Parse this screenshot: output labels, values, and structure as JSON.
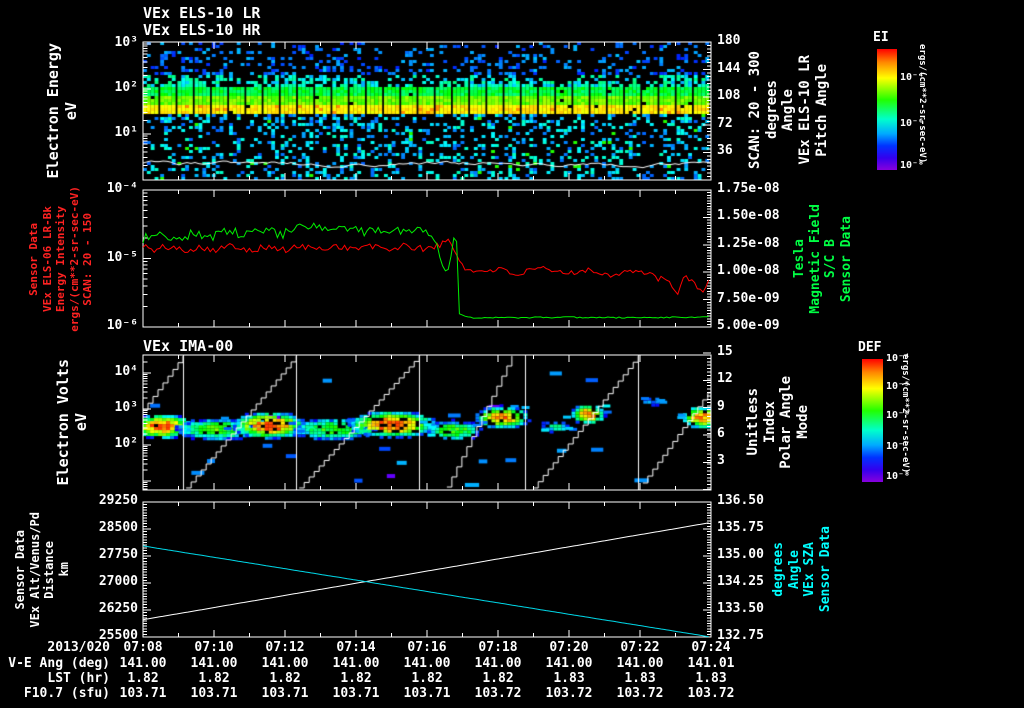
{
  "window": {
    "bg": "#000000",
    "fg": "#ffffff"
  },
  "time_axis": {
    "date_label": "2013/020",
    "ticks": [
      "07:08",
      "07:10",
      "07:12",
      "07:14",
      "07:16",
      "07:18",
      "07:20",
      "07:22",
      "07:24"
    ]
  },
  "footer_rows": [
    {
      "label": "V-E Ang (deg)",
      "values": [
        "141.00",
        "141.00",
        "141.00",
        "141.00",
        "141.00",
        "141.00",
        "141.00",
        "141.00",
        "141.01"
      ]
    },
    {
      "label": "LST (hr)",
      "values": [
        "1.82",
        "1.82",
        "1.82",
        "1.82",
        "1.82",
        "1.82",
        "1.83",
        "1.83",
        "1.83"
      ]
    },
    {
      "label": "F10.7 (sfu)",
      "values": [
        "103.71",
        "103.71",
        "103.71",
        "103.71",
        "103.71",
        "103.72",
        "103.72",
        "103.72",
        "103.72"
      ]
    }
  ],
  "chart_data": [
    {
      "type": "heatmap",
      "name": "els_electron_energy_spectrogram",
      "titles": [
        "VEx ELS-10 LR",
        "VEx ELS-10 HR"
      ],
      "ylabel_lines": [
        "Electron Energy",
        "eV"
      ],
      "yticks": [
        "10³",
        "10²",
        "10¹"
      ],
      "y_range_eV": [
        1,
        1100
      ],
      "x_range_time": [
        "07:08",
        "07:24"
      ],
      "band_eV": {
        "min": 28,
        "max": 110,
        "core": [
          30,
          60
        ]
      },
      "n_sweep_columns": 33,
      "trace_line_eV": 2.2,
      "right_axis": {
        "lines": [
          "SCAN: 20 - 300",
          "degrees",
          "Angle",
          "VEx ELS-10 LR",
          "Pitch Angle"
        ],
        "ticks": [
          "180",
          "144",
          "108",
          "72",
          "36"
        ],
        "range_deg": [
          0,
          180
        ]
      },
      "colorbar": {
        "title": "EI",
        "ticks": [
          "10⁻⁴",
          "10⁻⁶",
          "10⁻⁸"
        ],
        "units": "ergs/(cm**2-sr-sec-eV)"
      }
    },
    {
      "type": "line",
      "name": "els_intensity_and_magnetic_field",
      "left_label_lines": [
        "Sensor Data",
        "VEx ELS-06 LR-Bk",
        "Energy Intensity",
        "ergs/(cm**2-sr-sec-eV)",
        "SCAN: 20 - 150"
      ],
      "left_color": "#ff2222",
      "yticks_left": [
        "10⁻⁴",
        "10⁻⁵",
        "10⁻⁶"
      ],
      "left_range_log10": [
        -6,
        -4
      ],
      "right_label_lines": [
        "Tesla",
        "Magnetic Field",
        "S/C B",
        "Sensor Data"
      ],
      "right_color": "#00ff44",
      "yticks_right": [
        "1.75e-08",
        "1.50e-08",
        "1.25e-08",
        "1.00e-08",
        "7.50e-09",
        "5.00e-09"
      ],
      "right_range_tesla": [
        5e-09,
        1.75e-08
      ],
      "series": [
        {
          "name": "els_energy_intensity",
          "color": "#ff0000",
          "axis": "left_log10",
          "anchors": [
            [
              0.0,
              -4.8
            ],
            [
              0.02,
              -4.9
            ],
            [
              0.04,
              -4.82
            ],
            [
              0.07,
              -4.88
            ],
            [
              0.1,
              -4.83
            ],
            [
              0.13,
              -4.87
            ],
            [
              0.16,
              -4.81
            ],
            [
              0.19,
              -4.87
            ],
            [
              0.22,
              -4.83
            ],
            [
              0.25,
              -4.88
            ],
            [
              0.28,
              -4.82
            ],
            [
              0.31,
              -4.87
            ],
            [
              0.34,
              -4.81
            ],
            [
              0.37,
              -4.86
            ],
            [
              0.4,
              -4.82
            ],
            [
              0.43,
              -4.87
            ],
            [
              0.46,
              -4.82
            ],
            [
              0.49,
              -4.86
            ],
            [
              0.52,
              -4.81
            ],
            [
              0.54,
              -4.74
            ],
            [
              0.552,
              -4.95
            ],
            [
              0.565,
              -5.12
            ],
            [
              0.58,
              -5.2
            ],
            [
              0.62,
              -5.15
            ],
            [
              0.66,
              -5.23
            ],
            [
              0.7,
              -5.15
            ],
            [
              0.74,
              -5.22
            ],
            [
              0.78,
              -5.16
            ],
            [
              0.82,
              -5.24
            ],
            [
              0.86,
              -5.17
            ],
            [
              0.9,
              -5.26
            ],
            [
              0.925,
              -5.35
            ],
            [
              0.94,
              -5.52
            ],
            [
              0.955,
              -5.25
            ],
            [
              0.97,
              -5.35
            ],
            [
              0.985,
              -5.48
            ],
            [
              1.0,
              -5.3
            ]
          ],
          "noise_segments": [
            [
              0,
              0.545,
              0.05
            ],
            [
              0.545,
              1,
              0.045
            ]
          ]
        },
        {
          "name": "magnetic_field_B",
          "color": "#00ee00",
          "axis": "right_1e8",
          "anchors": [
            [
              0.0,
              1.3
            ],
            [
              0.03,
              1.37
            ],
            [
              0.06,
              1.29
            ],
            [
              0.09,
              1.36
            ],
            [
              0.12,
              1.32
            ],
            [
              0.15,
              1.38
            ],
            [
              0.18,
              1.33
            ],
            [
              0.21,
              1.4
            ],
            [
              0.24,
              1.34
            ],
            [
              0.27,
              1.39
            ],
            [
              0.3,
              1.42
            ],
            [
              0.33,
              1.36
            ],
            [
              0.36,
              1.41
            ],
            [
              0.39,
              1.35
            ],
            [
              0.42,
              1.4
            ],
            [
              0.45,
              1.37
            ],
            [
              0.48,
              1.41
            ],
            [
              0.5,
              1.36
            ],
            [
              0.515,
              1.3
            ],
            [
              0.528,
              1.05
            ],
            [
              0.535,
              0.97
            ],
            [
              0.545,
              1.27
            ],
            [
              0.552,
              1.3
            ],
            [
              0.556,
              0.62
            ],
            [
              0.58,
              0.585
            ],
            [
              0.65,
              0.585
            ],
            [
              0.75,
              0.588
            ],
            [
              0.85,
              0.585
            ],
            [
              1.0,
              0.59
            ]
          ],
          "noise_segments": [
            [
              0,
              0.552,
              0.045
            ],
            [
              0.552,
              1,
              0.006
            ]
          ]
        }
      ]
    },
    {
      "type": "heatmap",
      "name": "ima_ion_spectrogram",
      "title": "VEx IMA-00",
      "ylabel_lines": [
        "Electron Volts",
        "eV"
      ],
      "yticks": [
        "10⁴",
        "10³",
        "10²"
      ],
      "y_range_eV": [
        6,
        31000
      ],
      "right_axis": {
        "lines": [
          "Unitless",
          "Index",
          "Polar Angle",
          "Mode"
        ],
        "ticks": [
          "15",
          "12",
          "9",
          "6",
          "3"
        ],
        "range": [
          0,
          15
        ]
      },
      "colorbar": {
        "title": "DEF",
        "ticks": [
          "10⁻⁴",
          "10⁻⁵",
          "10⁻⁶",
          "10⁻⁷",
          "10⁻⁸"
        ],
        "units": "ergs/(cm**2-sr-sec-eV)"
      },
      "sweep_boundaries_frac": [
        0.07,
        0.269,
        0.486,
        0.672,
        0.871
      ],
      "staircases": [
        [
          0.0,
          0.407,
          0.07,
          0.007
        ],
        [
          0.076,
          0.985,
          0.266,
          0.007
        ],
        [
          0.275,
          0.985,
          0.482,
          0.007
        ],
        [
          0.535,
          0.978,
          0.653,
          0.007
        ],
        [
          0.687,
          0.985,
          0.87,
          0.007
        ],
        [
          0.88,
          0.948,
          1.0,
          0.23
        ]
      ],
      "blobs": [
        {
          "xf": 0.03,
          "yf": 0.519,
          "wf": 0.046,
          "hf": 0.074,
          "i": 0.95
        },
        {
          "xf": 0.127,
          "yf": 0.541,
          "wf": 0.06,
          "hf": 0.067,
          "i": 0.62
        },
        {
          "xf": 0.22,
          "yf": 0.511,
          "wf": 0.053,
          "hf": 0.081,
          "i": 0.97
        },
        {
          "xf": 0.333,
          "yf": 0.541,
          "wf": 0.063,
          "hf": 0.067,
          "i": 0.6
        },
        {
          "xf": 0.435,
          "yf": 0.504,
          "wf": 0.063,
          "hf": 0.081,
          "i": 0.97
        },
        {
          "xf": 0.544,
          "yf": 0.548,
          "wf": 0.039,
          "hf": 0.059,
          "i": 0.65
        },
        {
          "xf": 0.629,
          "yf": 0.452,
          "wf": 0.039,
          "hf": 0.067,
          "i": 0.93
        },
        {
          "xf": 0.722,
          "yf": 0.519,
          "wf": 0.021,
          "hf": 0.037,
          "i": 0.45
        },
        {
          "xf": 0.78,
          "yf": 0.43,
          "wf": 0.025,
          "hf": 0.059,
          "i": 0.92
        },
        {
          "xf": 0.892,
          "yf": 0.333,
          "wf": 0.014,
          "hf": 0.03,
          "i": 0.3
        },
        {
          "xf": 0.98,
          "yf": 0.452,
          "wf": 0.028,
          "hf": 0.067,
          "i": 0.9
        }
      ]
    },
    {
      "type": "line",
      "name": "altitude_and_sza",
      "left_label_lines": [
        "Sensor Data",
        "VEx Alt/Venus/Pd",
        "Distance",
        "km"
      ],
      "yticks_left": [
        "29250",
        "28500",
        "27750",
        "27000",
        "26250",
        "25500"
      ],
      "left_range_km": [
        25500,
        29250
      ],
      "right_label_lines": [
        "degrees",
        "Angle",
        "VEx SZA",
        "Sensor Data"
      ],
      "right_color": "#00ffff",
      "yticks_right": [
        "136.50",
        "135.75",
        "135.00",
        "134.25",
        "133.50",
        "132.75"
      ],
      "right_range_deg": [
        132.75,
        136.5
      ],
      "series": [
        {
          "name": "distance",
          "color": "#ffffff",
          "axis": "left_km",
          "anchors": [
            [
              0,
              25980
            ],
            [
              1,
              28680
            ]
          ],
          "noise_segments": [
            [
              0,
              1,
              0
            ]
          ]
        },
        {
          "name": "solar_zenith_angle",
          "color": "#00d8e8",
          "axis": "right_deg",
          "anchors": [
            [
              0,
              135.28
            ],
            [
              1,
              132.75
            ]
          ],
          "noise_segments": [
            [
              0,
              1,
              0
            ]
          ]
        }
      ]
    }
  ]
}
